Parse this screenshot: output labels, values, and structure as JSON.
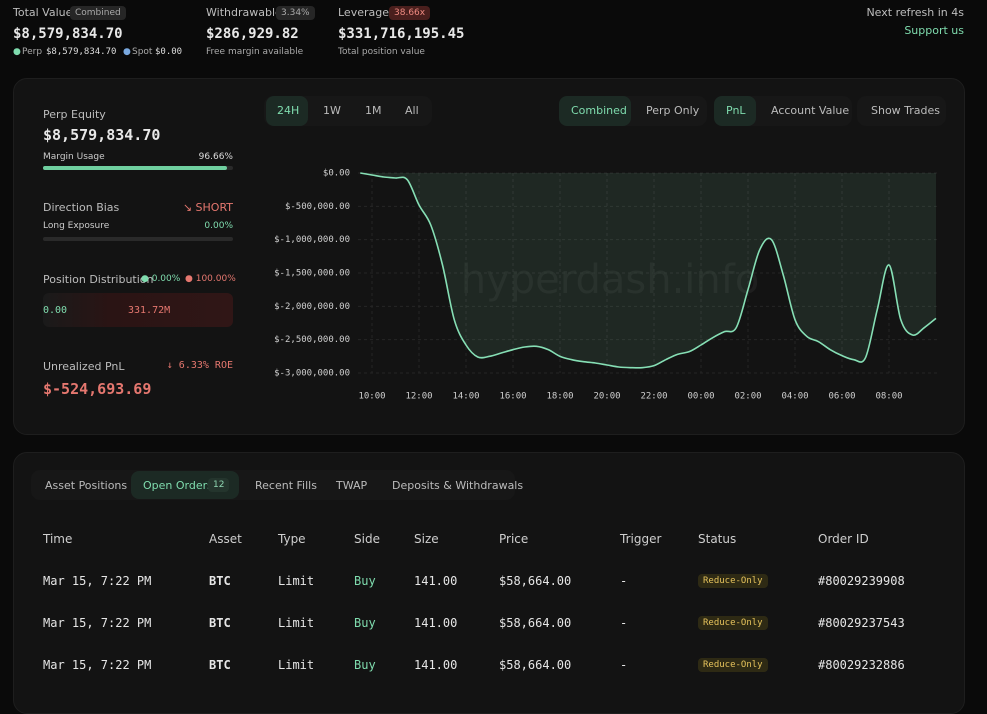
{
  "header": {
    "total_value": {
      "label": "Total Value",
      "badge": "Combined",
      "value": "$8,579,834.70",
      "perp_label": "Perp",
      "perp_value": "$8,579,834.70",
      "spot_label": "Spot",
      "spot_value": "$0.00"
    },
    "withdrawable": {
      "label": "Withdrawable",
      "badge": "3.34%",
      "value": "$286,929.82",
      "note": "Free margin available"
    },
    "leverage": {
      "label": "Leverage",
      "badge": "38.66x",
      "value": "$331,716,195.45",
      "note": "Total position value"
    },
    "refresh": "Next refresh in 4s",
    "support": "Support us"
  },
  "summary": {
    "perp_equity_label": "Perp Equity",
    "perp_equity": "$8,579,834.70",
    "margin_usage_label": "Margin Usage",
    "margin_usage": "96.66%",
    "direction_bias_label": "Direction Bias",
    "direction_bias": "↘ SHORT",
    "long_exposure_label": "Long Exposure",
    "long_exposure": "0.00%",
    "position_distribution_label": "Position Distribution",
    "long_share": "● 0.00%",
    "short_share": "● 100.00%",
    "long_amount": "0.00",
    "short_amount": "331.72M",
    "unrealized_pnl_label": "Unrealized PnL",
    "roe": "↓ 6.33% ROE",
    "unrealized_pnl": "$-524,693.69"
  },
  "chart_controls": {
    "ranges": [
      "24H",
      "1W",
      "1M",
      "All"
    ],
    "modes": [
      "Combined",
      "Perp Only"
    ],
    "metrics": [
      "PnL",
      "Account Value"
    ],
    "trades": "Show Trades"
  },
  "chart_data": {
    "type": "line",
    "watermark": "hyperdash.info",
    "color": "#86dfb5",
    "categories": [
      null,
      "10:00",
      null,
      null,
      null,
      "12:00",
      null,
      null,
      null,
      "14:00",
      null,
      null,
      null,
      "16:00",
      null,
      null,
      null,
      "18:00",
      null,
      null,
      null,
      "20:00",
      null,
      null,
      null,
      "22:00",
      null,
      null,
      null,
      "00:00",
      null,
      null,
      null,
      "02:00",
      null,
      null,
      null,
      "04:00",
      null,
      null,
      null,
      "06:00",
      null,
      null,
      null,
      "08:00",
      null,
      null,
      null,
      null
    ],
    "values": [
      0,
      -30000,
      -60000,
      -75000,
      -100000,
      -480000,
      -780000,
      -1380000,
      -2200000,
      -2580000,
      -2760000,
      -2750000,
      -2700000,
      -2650000,
      -2610000,
      -2600000,
      -2650000,
      -2750000,
      -2800000,
      -2830000,
      -2850000,
      -2880000,
      -2910000,
      -2920000,
      -2920000,
      -2890000,
      -2800000,
      -2720000,
      -2680000,
      -2580000,
      -2470000,
      -2380000,
      -2320000,
      -1750000,
      -1150000,
      -1000000,
      -1530000,
      -2200000,
      -2450000,
      -2530000,
      -2650000,
      -2740000,
      -2800000,
      -2770000,
      -2050000,
      -1380000,
      -2200000,
      -2430000,
      -2320000,
      -2180000
    ],
    "ylim": [
      -3000000,
      0
    ],
    "yticks": [
      {
        "value": 0,
        "label": "$0.00"
      },
      {
        "value": -500000,
        "label": "$-500,000.00"
      },
      {
        "value": -1000000,
        "label": "$-1,000,000.00"
      },
      {
        "value": -1500000,
        "label": "$-1,500,000.00"
      },
      {
        "value": -2000000,
        "label": "$-2,000,000.00"
      },
      {
        "value": -2500000,
        "label": "$-2,500,000.00"
      },
      {
        "value": -3000000,
        "label": "$-3,000,000.00"
      }
    ],
    "grid": true
  },
  "table": {
    "tabs": [
      "Asset Positions",
      "Open Orders",
      "Recent Fills",
      "TWAP",
      "Deposits & Withdrawals"
    ],
    "open_orders_count": "12",
    "columns": [
      "Time",
      "Asset",
      "Type",
      "Side",
      "Size",
      "Price",
      "Trigger",
      "Status",
      "Order ID"
    ],
    "rows": [
      [
        "Mar 15, 7:22 PM",
        "BTC",
        "Limit",
        "Buy",
        "141.00",
        "$58,664.00",
        "-",
        "Reduce-Only",
        "#80029239908"
      ],
      [
        "Mar 15, 7:22 PM",
        "BTC",
        "Limit",
        "Buy",
        "141.00",
        "$58,664.00",
        "-",
        "Reduce-Only",
        "#80029237543"
      ],
      [
        "Mar 15, 7:22 PM",
        "BTC",
        "Limit",
        "Buy",
        "141.00",
        "$58,664.00",
        "-",
        "Reduce-Only",
        "#80029232886"
      ]
    ]
  }
}
